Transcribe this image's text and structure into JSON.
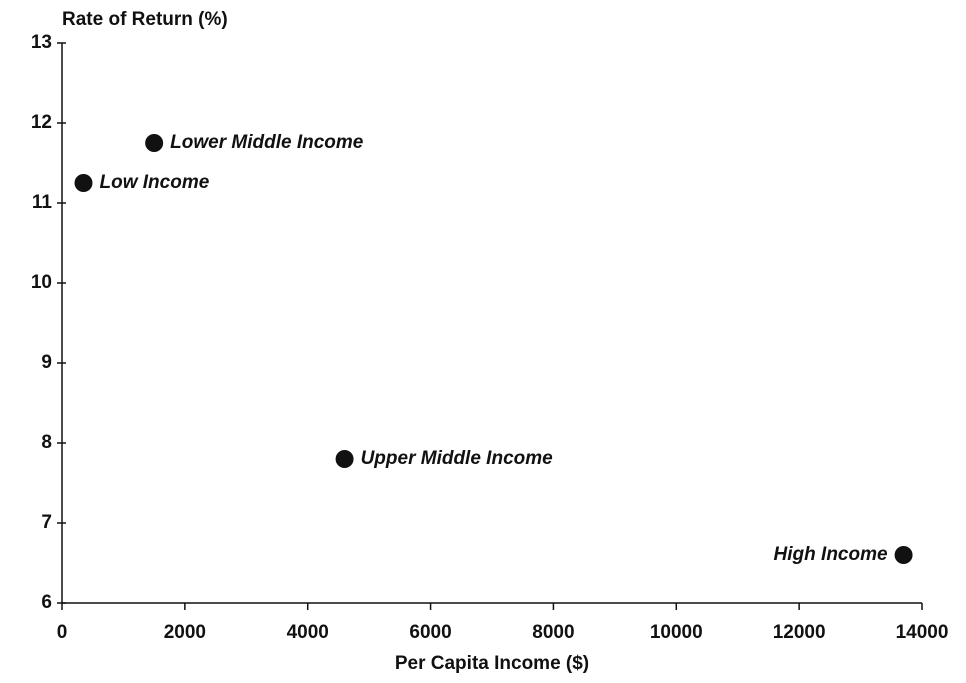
{
  "chart_data": {
    "type": "scatter",
    "ylabel": "Rate of Return (%)",
    "xlabel": "Per Capita Income ($)",
    "labels": [
      "Low Income",
      "Lower Middle Income",
      "Upper Middle Income",
      "High Income"
    ],
    "x": [
      350,
      1500,
      4600,
      13700
    ],
    "values": [
      11.25,
      11.75,
      7.8,
      6.6
    ],
    "color": "#111111",
    "xlim": [
      0,
      14000
    ],
    "xticks": [
      0,
      2000,
      4000,
      6000,
      8000,
      10000,
      12000,
      14000
    ],
    "ylim": [
      6,
      13
    ],
    "yticks": [
      6,
      7,
      8,
      9,
      10,
      11,
      12,
      13
    ],
    "grid": false
  }
}
